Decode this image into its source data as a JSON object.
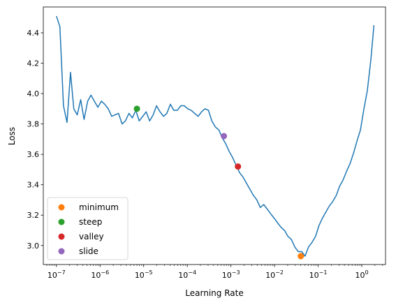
{
  "chart_data": {
    "type": "line",
    "title": "",
    "xlabel": "Learning Rate",
    "ylabel": "Loss",
    "xscale": "log",
    "xlim": [
      5e-08,
      3.5
    ],
    "ylim": [
      2.875,
      4.57
    ],
    "grid": false,
    "legend_position": "lower-left",
    "x_ticks": [
      {
        "value": 1e-07,
        "base": "10",
        "exp": "−7"
      },
      {
        "value": 1e-06,
        "base": "10",
        "exp": "−6"
      },
      {
        "value": 1e-05,
        "base": "10",
        "exp": "−5"
      },
      {
        "value": 0.0001,
        "base": "10",
        "exp": "−4"
      },
      {
        "value": 0.001,
        "base": "10",
        "exp": "−3"
      },
      {
        "value": 0.01,
        "base": "10",
        "exp": "−2"
      },
      {
        "value": 0.1,
        "base": "10",
        "exp": "−1"
      },
      {
        "value": 1,
        "base": "10",
        "exp": "0"
      }
    ],
    "y_ticks": [
      {
        "value": 3.0,
        "label": "3.0"
      },
      {
        "value": 3.2,
        "label": "3.2"
      },
      {
        "value": 3.4,
        "label": "3.4"
      },
      {
        "value": 3.6,
        "label": "3.6"
      },
      {
        "value": 3.8,
        "label": "3.8"
      },
      {
        "value": 4.0,
        "label": "4.0"
      },
      {
        "value": 4.2,
        "label": "4.2"
      },
      {
        "value": 4.4,
        "label": "4.4"
      }
    ],
    "line_color": "#1f77b4",
    "series": [
      {
        "x": [
          1e-07,
          1.2e-07,
          1.45e-07,
          1.75e-07,
          2.1e-07,
          2.5e-07,
          3e-07,
          3.6e-07,
          4.3e-07,
          5.2e-07,
          6.2e-07,
          7.4e-07,
          8.9e-07,
          1.07e-06,
          1.28e-06,
          1.54e-06,
          1.85e-06,
          2.2e-06,
          2.65e-06,
          3.2e-06,
          3.8e-06,
          4.6e-06,
          5.5e-06,
          6.6e-06,
          7.9e-06,
          9.5e-06,
          1.14e-05,
          1.37e-05,
          1.65e-05,
          1.97e-05,
          2.37e-05,
          2.85e-05,
          3.4e-05,
          4.1e-05,
          4.9e-05,
          5.9e-05,
          7.1e-05,
          8.5e-05,
          0.000102,
          0.000123,
          0.000147,
          0.000177,
          0.000212,
          0.000255,
          0.000305,
          0.000365,
          0.00044,
          0.00053,
          0.00063,
          0.00076,
          0.00091,
          0.00109,
          0.00131,
          0.00158,
          0.0019,
          0.00227,
          0.00273,
          0.00328,
          0.00393,
          0.0047,
          0.00565,
          0.0068,
          0.0081,
          0.0098,
          0.0117,
          0.0141,
          0.0169,
          0.0203,
          0.0243,
          0.0292,
          0.035,
          0.042,
          0.05,
          0.06,
          0.072,
          0.087,
          0.104,
          0.125,
          0.15,
          0.18,
          0.216,
          0.26,
          0.31,
          0.37,
          0.45,
          0.54,
          0.65,
          0.78,
          0.93,
          1.12,
          1.34,
          1.61,
          1.9
        ],
        "y": [
          4.51,
          4.44,
          3.92,
          3.81,
          4.14,
          3.9,
          3.86,
          3.96,
          3.83,
          3.95,
          3.99,
          3.95,
          3.91,
          3.95,
          3.93,
          3.9,
          3.85,
          3.86,
          3.87,
          3.8,
          3.82,
          3.87,
          3.84,
          3.89,
          3.82,
          3.85,
          3.88,
          3.82,
          3.86,
          3.92,
          3.88,
          3.85,
          3.87,
          3.93,
          3.89,
          3.89,
          3.92,
          3.92,
          3.9,
          3.89,
          3.87,
          3.85,
          3.88,
          3.9,
          3.89,
          3.82,
          3.78,
          3.76,
          3.71,
          3.67,
          3.62,
          3.58,
          3.53,
          3.48,
          3.45,
          3.41,
          3.37,
          3.33,
          3.3,
          3.25,
          3.27,
          3.24,
          3.21,
          3.18,
          3.15,
          3.12,
          3.1,
          3.06,
          3.04,
          2.99,
          2.96,
          2.96,
          2.93,
          2.99,
          3.02,
          3.06,
          3.13,
          3.18,
          3.22,
          3.26,
          3.29,
          3.33,
          3.39,
          3.43,
          3.49,
          3.54,
          3.61,
          3.69,
          3.76,
          3.9,
          4.02,
          4.22,
          4.45
        ]
      }
    ],
    "markers": [
      {
        "name": "minimum",
        "x": 0.04,
        "y": 2.93,
        "color": "#ff7f0e"
      },
      {
        "name": "steep",
        "x": 7e-06,
        "y": 3.9,
        "color": "#2ca02c"
      },
      {
        "name": "valley",
        "x": 0.00145,
        "y": 3.52,
        "color": "#d62728"
      },
      {
        "name": "slide",
        "x": 0.00069,
        "y": 3.72,
        "color": "#9467bd"
      }
    ]
  }
}
